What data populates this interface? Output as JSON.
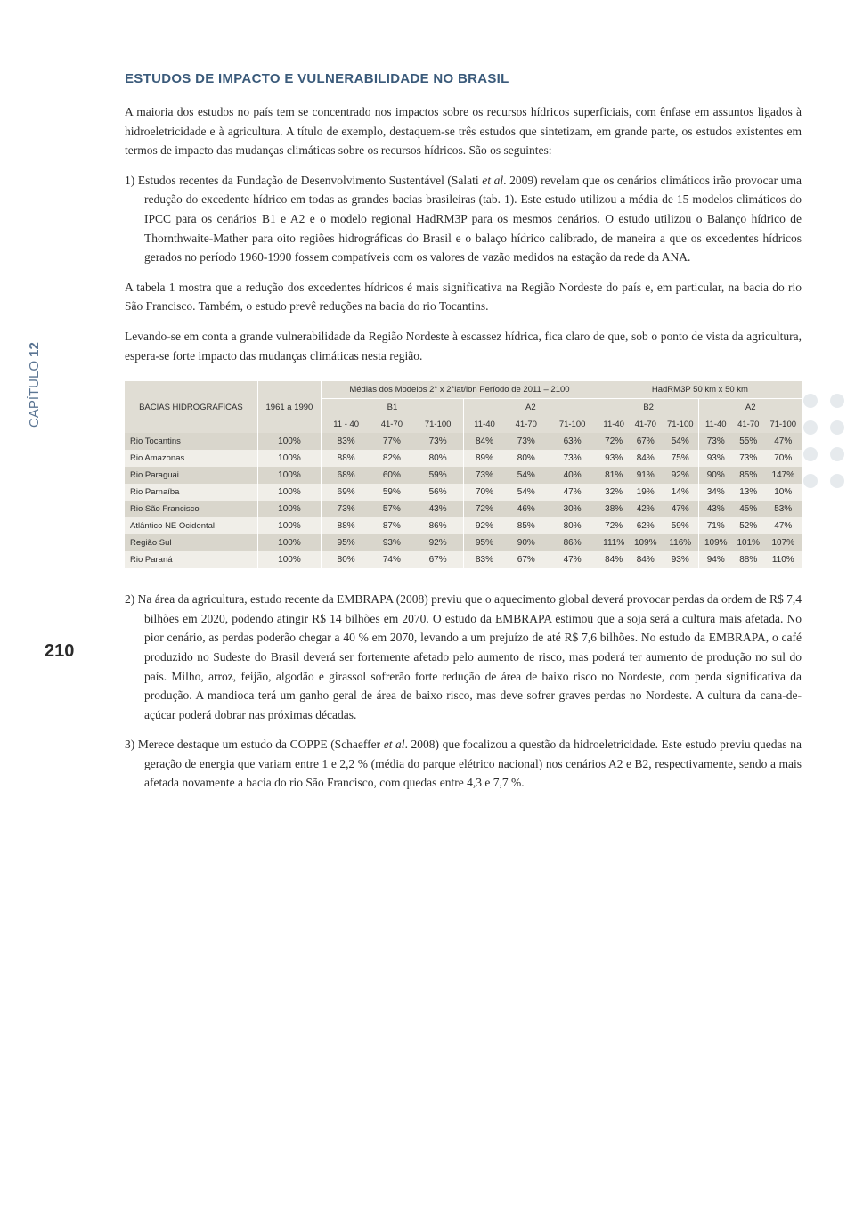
{
  "chapter_label": "CAPÍTULO",
  "chapter_number": "12",
  "page_number": "210",
  "section_title": "ESTUDOS DE IMPACTO E VULNERABILIDADE NO BRASIL",
  "para_intro": "A maioria dos estudos no país tem se concentrado nos impactos sobre os recursos hídricos superficiais, com ênfase em assuntos ligados à hidroeletricidade e à agricultura. A título de exemplo, destaquem-se três estudos que sintetizam, em grande parte, os estudos existentes em termos de impacto das mudanças climáticas sobre os recursos hídricos. São os seguintes:",
  "item1_a": "1) Estudos recentes da Fundação de Desenvolvimento Sustentável (Salati ",
  "item1_i": "et al",
  "item1_b": ". 2009) revelam que os cenários climáticos irão provocar uma redução do excedente hídrico em todas as grandes bacias brasileiras (tab. 1). Este estudo utilizou a média de 15 modelos climáticos do IPCC para os cenários B1 e A2 e o modelo regional HadRM3P para os mesmos cenários. O estudo utilizou o Balanço hídrico de Thornthwaite-Mather para oito regiões hidrográficas do Brasil e o balaço hídrico calibrado, de maneira a que os excedentes hídricos gerados no período 1960-1990 fossem compatíveis com os valores de vazão medidos na estação da rede da ANA.",
  "para_tabela": "A tabela 1 mostra que a redução dos excedentes hídricos é mais significativa na Região Nordeste do país e, em particular, na bacia do rio São Francisco. Também, o estudo prevê reduções na bacia do rio Tocantins.",
  "para_levando": "Levando-se em conta a grande vulnerabilidade da Região Nordeste à escassez hídrica, fica claro de que, sob o ponto de vista da agricultura, espera-se forte impacto das mudanças climáticas nesta região.",
  "item2": "2) Na área da agricultura, estudo recente da EMBRAPA (2008) previu que o aquecimento global deverá provocar perdas da ordem de R$ 7,4 bilhões em 2020, podendo atingir R$ 14 bilhões em 2070. O estudo da EMBRAPA estimou que a soja será a cultura mais afetada. No pior cenário, as perdas poderão chegar a 40 % em 2070, levando a um prejuízo de até R$ 7,6 bilhões. No estudo da EMBRAPA, o café produzido no Sudeste do Brasil deverá ser fortemente afetado pelo aumento de risco, mas poderá ter aumento de produção no sul do país. Milho, arroz, feijão, algodão e girassol sofrerão forte redução de área de baixo risco no Nordeste, com perda significativa da produção. A mandioca terá um ganho geral de área de baixo risco, mas deve sofrer graves perdas no Nordeste. A cultura da cana-de-açúcar poderá dobrar nas próximas décadas.",
  "item3_a": "3) Merece destaque um estudo da COPPE (Schaeffer ",
  "item3_i": "et al",
  "item3_b": ". 2008) que focalizou a questão da hidroeletricidade. Este estudo previu quedas na geração de energia que variam entre 1 e 2,2 % (média do parque elétrico nacional) nos cenários A2 e B2, respectivamente, sendo a mais afetada novamente a bacia do rio São Francisco, com quedas entre 4,3 e 7,7 %.",
  "table": {
    "col_bacias": "BACIAS HIDROGRÁFICAS",
    "col_base": "1961 a 1990",
    "merged_modelos": "Médias dos Modelos 2° x 2°lat/lon Período de 2011 – 2100",
    "merged_hadrm": "HadRM3P 50 km x 50 km",
    "b1": "B1",
    "a2": "A2",
    "b2": "B2",
    "p1140": "11 - 40",
    "p4170": "41-70",
    "p71100": "71-100",
    "p1140b": "11-40",
    "rows": [
      {
        "name": "Rio Tocantins",
        "base": "100%",
        "v": [
          "83%",
          "77%",
          "73%",
          "84%",
          "73%",
          "63%",
          "72%",
          "67%",
          "54%",
          "73%",
          "55%",
          "47%"
        ]
      },
      {
        "name": "Rio Amazonas",
        "base": "100%",
        "v": [
          "88%",
          "82%",
          "80%",
          "89%",
          "80%",
          "73%",
          "93%",
          "84%",
          "75%",
          "93%",
          "73%",
          "70%"
        ]
      },
      {
        "name": "Rio Paraguai",
        "base": "100%",
        "v": [
          "68%",
          "60%",
          "59%",
          "73%",
          "54%",
          "40%",
          "81%",
          "91%",
          "92%",
          "90%",
          "85%",
          "147%"
        ]
      },
      {
        "name": "Rio Parnaíba",
        "base": "100%",
        "v": [
          "69%",
          "59%",
          "56%",
          "70%",
          "54%",
          "47%",
          "32%",
          "19%",
          "14%",
          "34%",
          "13%",
          "10%"
        ]
      },
      {
        "name": "Rio São Francisco",
        "base": "100%",
        "v": [
          "73%",
          "57%",
          "43%",
          "72%",
          "46%",
          "30%",
          "38%",
          "42%",
          "47%",
          "43%",
          "45%",
          "53%"
        ]
      },
      {
        "name": "Atlântico NE Ocidental",
        "base": "100%",
        "v": [
          "88%",
          "87%",
          "86%",
          "92%",
          "85%",
          "80%",
          "72%",
          "62%",
          "59%",
          "71%",
          "52%",
          "47%"
        ]
      },
      {
        "name": "Região Sul",
        "base": "100%",
        "v": [
          "95%",
          "93%",
          "92%",
          "95%",
          "90%",
          "86%",
          "111%",
          "109%",
          "116%",
          "109%",
          "101%",
          "107%"
        ]
      },
      {
        "name": "Rio Paraná",
        "base": "100%",
        "v": [
          "80%",
          "74%",
          "67%",
          "83%",
          "67%",
          "47%",
          "84%",
          "84%",
          "93%",
          "94%",
          "88%",
          "110%"
        ]
      }
    ]
  },
  "colors": {
    "heading": "#3a5a7a",
    "side_label": "#5b7593",
    "text": "#2b2b2b",
    "table_head": "#e0ddd4",
    "table_row_odd": "#d9d6cc",
    "table_row_even": "#f0eee8"
  }
}
